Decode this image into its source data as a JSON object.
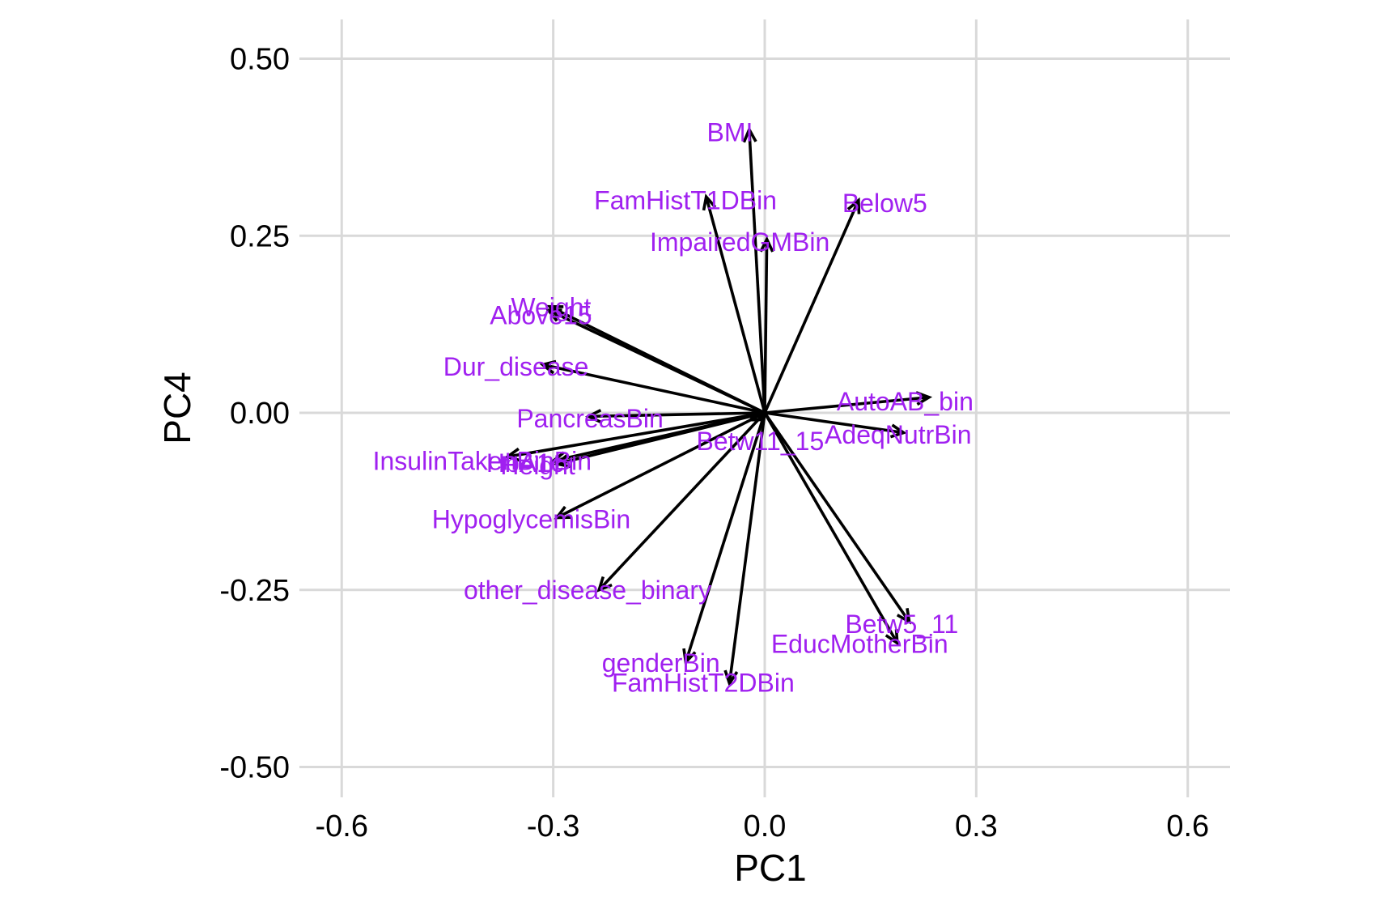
{
  "chart_data": {
    "type": "biplot-loadings",
    "xlabel": "PC1",
    "ylabel": "PC4",
    "xlim": [
      -0.66,
      0.66
    ],
    "ylim": [
      -0.56,
      0.56
    ],
    "x_ticks": [
      -0.6,
      -0.3,
      0.0,
      0.3,
      0.6
    ],
    "x_tick_labels": [
      "-0.6",
      "-0.3",
      "0.0",
      "0.3",
      "0.6"
    ],
    "y_ticks": [
      -0.5,
      -0.25,
      0.0,
      0.25,
      0.5
    ],
    "y_tick_labels": [
      "-0.50",
      "-0.25",
      "0.00",
      "0.25",
      "0.50"
    ],
    "grid": true,
    "arrow_color": "#000000",
    "label_color": "#a020f0",
    "vectors": [
      {
        "name": "BMI",
        "x": -0.022,
        "y": 0.4,
        "lx": -0.082,
        "ly": 0.396
      },
      {
        "name": "FamHistT1DBin",
        "x": -0.083,
        "y": 0.305,
        "lx": -0.242,
        "ly": 0.3
      },
      {
        "name": "Below5",
        "x": 0.133,
        "y": 0.3,
        "lx": 0.11,
        "ly": 0.296
      },
      {
        "name": "ImpairedGMBin",
        "x": 0.003,
        "y": 0.245,
        "lx": -0.163,
        "ly": 0.241
      },
      {
        "name": "Weight",
        "x": -0.305,
        "y": 0.15,
        "lx": -0.36,
        "ly": 0.149
      },
      {
        "name": "Above15",
        "x": -0.307,
        "y": 0.145,
        "lx": -0.39,
        "ly": 0.138
      },
      {
        "name": "Dur_disease",
        "x": -0.315,
        "y": 0.068,
        "lx": -0.456,
        "ly": 0.065
      },
      {
        "name": "AutoAB_bin",
        "x": 0.233,
        "y": 0.022,
        "lx": 0.102,
        "ly": 0.016
      },
      {
        "name": "PancreasBin",
        "x": -0.25,
        "y": -0.005,
        "lx": -0.352,
        "ly": -0.008
      },
      {
        "name": "AdeqNutrBin",
        "x": 0.197,
        "y": -0.028,
        "lx": 0.085,
        "ly": -0.031
      },
      {
        "name": "Betw11_15",
        "x": -0.02,
        "y": -0.01,
        "lx": -0.097,
        "ly": -0.04
      },
      {
        "name": "InsulinTakenBinBin",
        "x": -0.365,
        "y": -0.062,
        "lx": -0.556,
        "ly": -0.068
      },
      {
        "name": "HbA1c",
        "x": -0.3,
        "y": -0.068,
        "lx": -0.395,
        "ly": -0.071
      },
      {
        "name": "Height",
        "x": -0.295,
        "y": -0.072,
        "lx": -0.375,
        "ly": -0.074
      },
      {
        "name": "HypoglycemisBin",
        "x": -0.295,
        "y": -0.148,
        "lx": -0.472,
        "ly": -0.15
      },
      {
        "name": "other_disease_binary",
        "x": -0.235,
        "y": -0.25,
        "lx": -0.427,
        "ly": -0.25
      },
      {
        "name": "Betw5_11",
        "x": 0.205,
        "y": -0.295,
        "lx": 0.114,
        "ly": -0.298
      },
      {
        "name": "EducMotherBin",
        "x": 0.188,
        "y": -0.325,
        "lx": 0.009,
        "ly": -0.326
      },
      {
        "name": "genderBin",
        "x": -0.112,
        "y": -0.352,
        "lx": -0.231,
        "ly": -0.353
      },
      {
        "name": "FamHistT2DBin",
        "x": -0.05,
        "y": -0.382,
        "lx": -0.217,
        "ly": -0.381
      }
    ]
  }
}
